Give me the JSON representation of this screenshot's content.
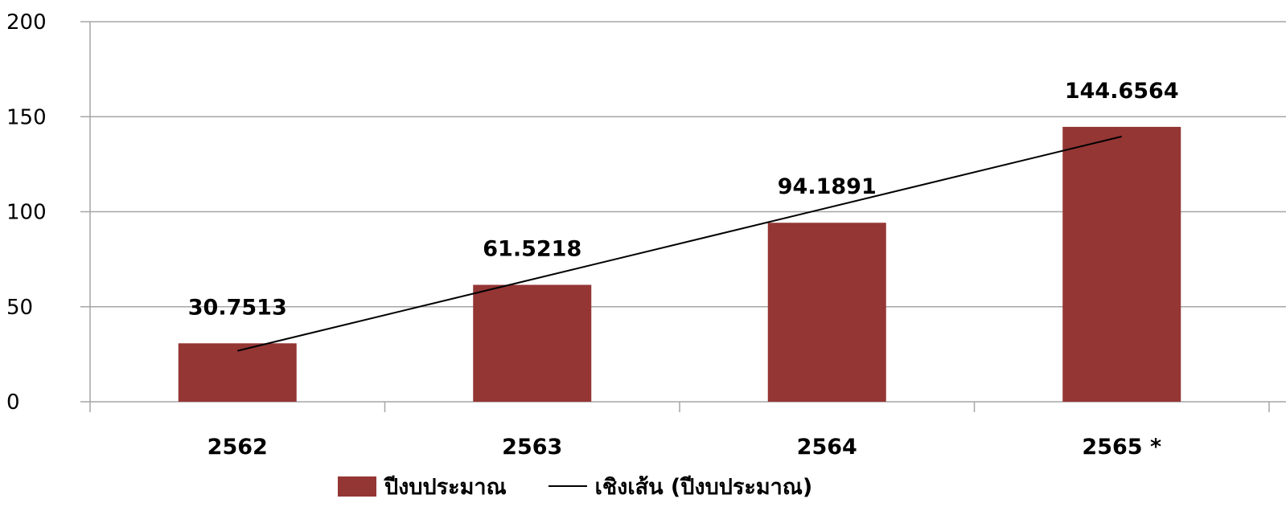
{
  "chart_data": {
    "type": "bar",
    "categories": [
      "2562",
      "2563",
      "2564",
      "2565 *"
    ],
    "series": [
      {
        "name": "ปีงบประมาณ",
        "type": "bar",
        "values": [
          30.7513,
          61.5218,
          94.1891,
          144.6564
        ],
        "data_labels": [
          "30.7513",
          "61.5218",
          "94.1891",
          "144.6564"
        ]
      }
    ],
    "trendline": {
      "name": "เชิงเส้น (ปีงบประมาณ)",
      "type": "linear",
      "start": 26.8,
      "end": 139.6
    },
    "y_ticks": [
      "0",
      "50",
      "100",
      "150",
      "200"
    ],
    "ylim": [
      0,
      200
    ],
    "grid": true,
    "legend": "bottom",
    "colors": {
      "bar": "#943634",
      "trendline": "#000000",
      "grid": "#a6a6a6"
    }
  }
}
